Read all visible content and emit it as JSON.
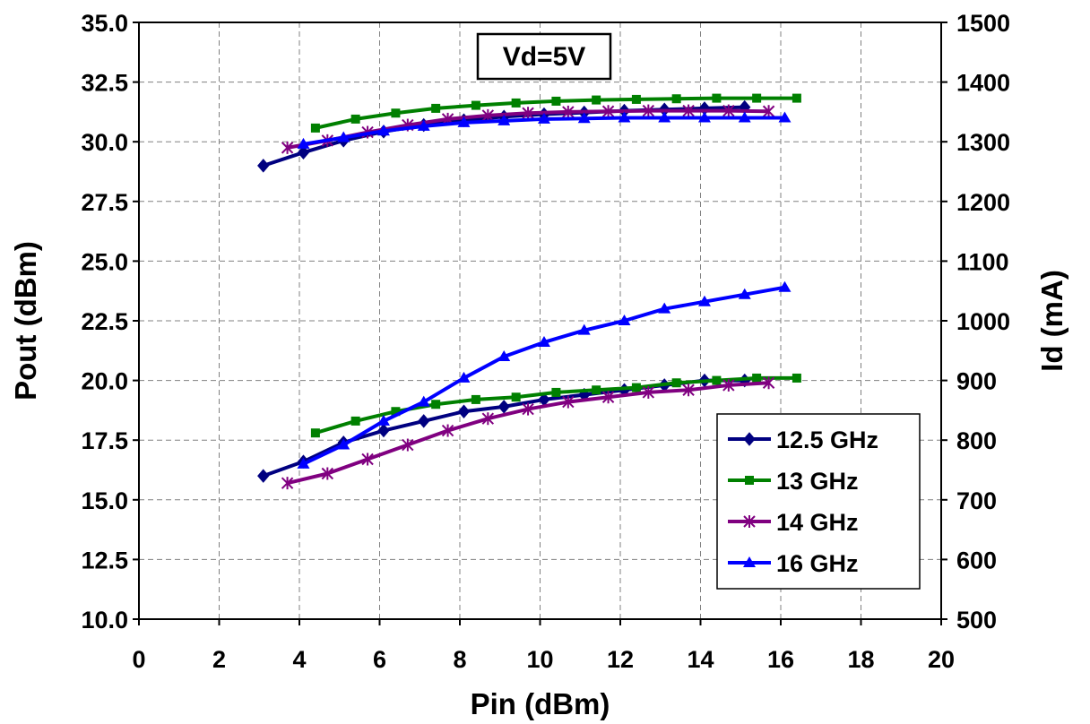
{
  "chart_data": {
    "type": "line",
    "xlabel": "Pin (dBm)",
    "ylabel": "Pout (dBm)",
    "y2label": "Id (mA)",
    "xlim": [
      0,
      20
    ],
    "ylim": [
      10,
      35
    ],
    "y2lim": [
      500,
      1500
    ],
    "x_ticks": [
      "0",
      "2",
      "4",
      "6",
      "8",
      "10",
      "12",
      "14",
      "16",
      "18",
      "20"
    ],
    "y_ticks": [
      "10.0",
      "12.5",
      "15.0",
      "17.5",
      "20.0",
      "22.5",
      "25.0",
      "27.5",
      "30.0",
      "32.5",
      "35.0"
    ],
    "y2_ticks": [
      "500",
      "600",
      "700",
      "800",
      "900",
      "1000",
      "1100",
      "1200",
      "1300",
      "1400",
      "1500"
    ],
    "grid": true,
    "legend_position": "bottom-right",
    "annotation": "Vd=5V",
    "series": [
      {
        "name": "12.5 GHz",
        "color": "#000080",
        "marker": "diamond",
        "pout": {
          "x": [
            3.1,
            4.1,
            5.1,
            6.1,
            7.1,
            8.1,
            9.1,
            10.1,
            11.1,
            12.1,
            13.1,
            14.1,
            15.1
          ],
          "y": [
            16.0,
            16.6,
            17.4,
            17.9,
            18.3,
            18.7,
            18.9,
            19.2,
            19.4,
            19.6,
            19.8,
            20.0,
            20.0
          ]
        },
        "id": {
          "x": [
            3.1,
            4.1,
            5.1,
            6.1,
            7.1,
            8.1,
            9.1,
            10.1,
            11.1,
            12.1,
            13.1,
            14.1,
            15.1
          ],
          "y": [
            1260,
            1282,
            1302,
            1317,
            1328,
            1336,
            1342,
            1346,
            1349,
            1352,
            1354,
            1356,
            1358
          ]
        }
      },
      {
        "name": "13 GHz",
        "color": "#008000",
        "marker": "square",
        "pout": {
          "x": [
            4.4,
            5.4,
            6.4,
            7.4,
            8.4,
            9.4,
            10.4,
            11.4,
            12.4,
            13.4,
            14.4,
            15.4,
            16.4
          ],
          "y": [
            17.8,
            18.3,
            18.7,
            19.0,
            19.2,
            19.3,
            19.5,
            19.6,
            19.7,
            19.9,
            20.0,
            20.1,
            20.1
          ]
        },
        "id": {
          "x": [
            4.4,
            5.4,
            6.4,
            7.4,
            8.4,
            9.4,
            10.4,
            11.4,
            12.4,
            13.4,
            14.4,
            15.4,
            16.4
          ],
          "y": [
            1323,
            1338,
            1348,
            1356,
            1361,
            1365,
            1368,
            1370,
            1371,
            1372,
            1373,
            1373,
            1373
          ]
        }
      },
      {
        "name": "14 GHz",
        "color": "#800080",
        "marker": "star",
        "pout": {
          "x": [
            3.7,
            4.7,
            5.7,
            6.7,
            7.7,
            8.7,
            9.7,
            10.7,
            11.7,
            12.7,
            13.7,
            14.7,
            15.7
          ],
          "y": [
            15.7,
            16.1,
            16.7,
            17.3,
            17.9,
            18.4,
            18.8,
            19.1,
            19.3,
            19.5,
            19.6,
            19.8,
            19.9
          ]
        },
        "id": {
          "x": [
            3.7,
            4.7,
            5.7,
            6.7,
            7.7,
            8.7,
            9.7,
            10.7,
            11.7,
            12.7,
            13.7,
            14.7,
            15.7
          ],
          "y": [
            1290,
            1302,
            1316,
            1328,
            1338,
            1344,
            1348,
            1350,
            1351,
            1352,
            1352,
            1352,
            1351
          ]
        }
      },
      {
        "name": "16 GHz",
        "color": "#0000ff",
        "marker": "triangle",
        "pout": {
          "x": [
            4.1,
            5.1,
            6.1,
            7.1,
            8.1,
            9.1,
            10.1,
            11.1,
            12.1,
            13.1,
            14.1,
            15.1,
            16.1
          ],
          "y": [
            16.5,
            17.3,
            18.3,
            19.1,
            20.1,
            21.0,
            21.6,
            22.1,
            22.5,
            23.0,
            23.3,
            23.6,
            23.9
          ]
        },
        "id": {
          "x": [
            4.1,
            5.1,
            6.1,
            7.1,
            8.1,
            9.1,
            10.1,
            11.1,
            12.1,
            13.1,
            14.1,
            15.1,
            16.1
          ],
          "y": [
            1296,
            1307,
            1318,
            1326,
            1332,
            1335,
            1338,
            1339,
            1340,
            1340,
            1340,
            1340,
            1340
          ]
        }
      }
    ]
  }
}
